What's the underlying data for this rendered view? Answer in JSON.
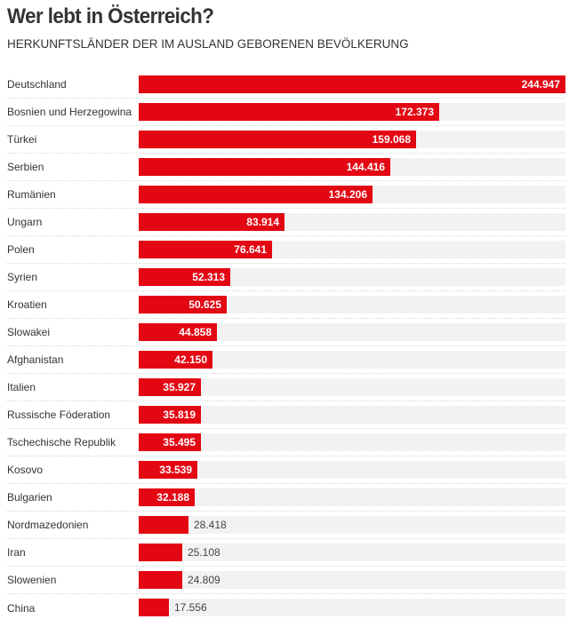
{
  "chart_data": {
    "type": "bar",
    "orientation": "horizontal",
    "title": "Wer lebt in Österreich?",
    "subtitle": "Herkunftsländer der im Ausland geborenen Bevölkerung",
    "xlabel": "",
    "ylabel": "",
    "xlim": [
      0,
      244947
    ],
    "grid": false,
    "legend": "none",
    "bar_color": "#e30613",
    "track_color": "#f2f2f2",
    "categories": [
      "Deutschland",
      "Bosnien und Herzegowina",
      "Türkei",
      "Serbien",
      "Rumänien",
      "Ungarn",
      "Polen",
      "Syrien",
      "Kroatien",
      "Slowakei",
      "Afghanistan",
      "Italien",
      "Russische Föderation",
      "Tschechische Republik",
      "Kosovo",
      "Bulgarien",
      "Nordmazedonien",
      "Iran",
      "Slowenien",
      "China"
    ],
    "values": [
      244947,
      172373,
      159068,
      144416,
      134206,
      83914,
      76641,
      52313,
      50625,
      44858,
      42150,
      35927,
      35819,
      35495,
      33539,
      32188,
      28418,
      25108,
      24809,
      17556
    ],
    "value_labels": [
      "244.947",
      "172.373",
      "159.068",
      "144.416",
      "134.206",
      "83.914",
      "76.641",
      "52.313",
      "50.625",
      "44.858",
      "42.150",
      "35.927",
      "35.819",
      "35.495",
      "33.539",
      "32.188",
      "28.418",
      "25.108",
      "24.809",
      "17.556"
    ]
  }
}
